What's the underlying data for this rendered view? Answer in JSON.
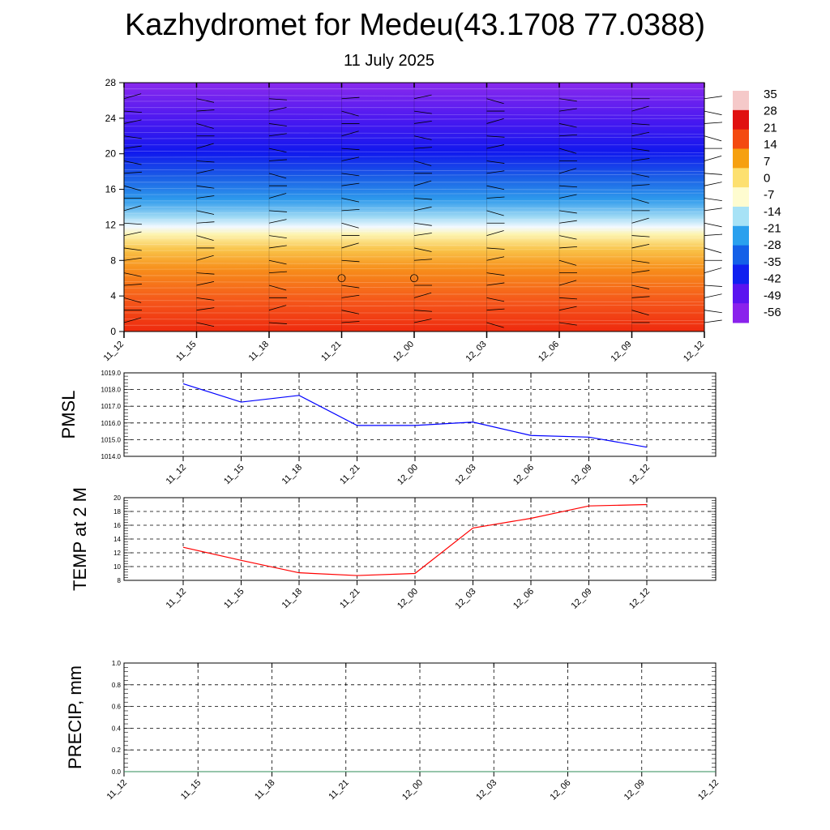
{
  "header": {
    "title": "Kazhydromet for Medeu(43.1708 77.0388)",
    "subtitle": "11 July 2025"
  },
  "chart_data": [
    {
      "type": "heatmap",
      "title": "",
      "xlabel": "",
      "ylabel": "",
      "x_ticks": [
        "11_12",
        "11_15",
        "11_18",
        "11_21",
        "12_00",
        "12_03",
        "12_06",
        "12_09",
        "12_12"
      ],
      "y_ticks": [
        0,
        4,
        8,
        12,
        16,
        20,
        24,
        28
      ],
      "ylim": [
        0,
        28
      ],
      "colorbar_labels": [
        "35",
        "28",
        "21",
        "14",
        "7",
        "0",
        "-7",
        "-14",
        "-21",
        "-28",
        "-35",
        "-42",
        "-49",
        "-56"
      ],
      "colorbar_colors": [
        "#f5c9c9",
        "#e01010",
        "#f44a10",
        "#f6a010",
        "#fde070",
        "#fefcd0",
        "#a7e2f6",
        "#2aa0ee",
        "#1460e8",
        "#1020f0",
        "#5a14f0",
        "#8a22ec"
      ],
      "calm_markers": [
        {
          "time": "11_21",
          "level": 6
        },
        {
          "time": "12_00",
          "level": 6
        }
      ],
      "wind_barbs": "black barbs at each 3-hourly time and every ~1 km level"
    },
    {
      "type": "line",
      "ylabel": "PMSL",
      "x": [
        "11_12",
        "11_15",
        "11_18",
        "11_21",
        "12_00",
        "12_03",
        "12_06",
        "12_09",
        "12_12"
      ],
      "series": [
        {
          "values": [
            1018.35,
            1017.25,
            1017.65,
            1015.85,
            1015.85,
            1016.05,
            1015.25,
            1015.15,
            1014.55
          ],
          "color": "#0000ff"
        }
      ],
      "ylim": [
        1014.0,
        1019.0
      ],
      "y_ticks": [
        "1014.0",
        "1015.0",
        "1016.0",
        "1017.0",
        "1018.0",
        "1019.0"
      ],
      "grid": true
    },
    {
      "type": "line",
      "ylabel": "TEMP at 2 M",
      "x": [
        "11_12",
        "11_15",
        "11_18",
        "11_21",
        "12_00",
        "12_03",
        "12_06",
        "12_09",
        "12_12"
      ],
      "series": [
        {
          "values": [
            12.8,
            10.9,
            9.1,
            8.7,
            9.0,
            15.6,
            17.0,
            18.8,
            19.0
          ],
          "color": "#ff0000"
        }
      ],
      "ylim": [
        8,
        20
      ],
      "y_ticks": [
        "8",
        "10",
        "12",
        "14",
        "16",
        "18",
        "20"
      ],
      "grid": true
    },
    {
      "type": "bar",
      "ylabel": "PRECIP, mm",
      "x": [
        "11_12",
        "11_15",
        "11_18",
        "11_21",
        "12_00",
        "12_03",
        "12_06",
        "12_09",
        "12_12"
      ],
      "values": [
        0,
        0,
        0,
        0,
        0,
        0,
        0,
        0,
        0
      ],
      "ylim": [
        0.0,
        1.0
      ],
      "y_ticks": [
        "0.0",
        "0.2",
        "0.4",
        "0.6",
        "0.8",
        "1.0"
      ],
      "grid": true
    }
  ]
}
